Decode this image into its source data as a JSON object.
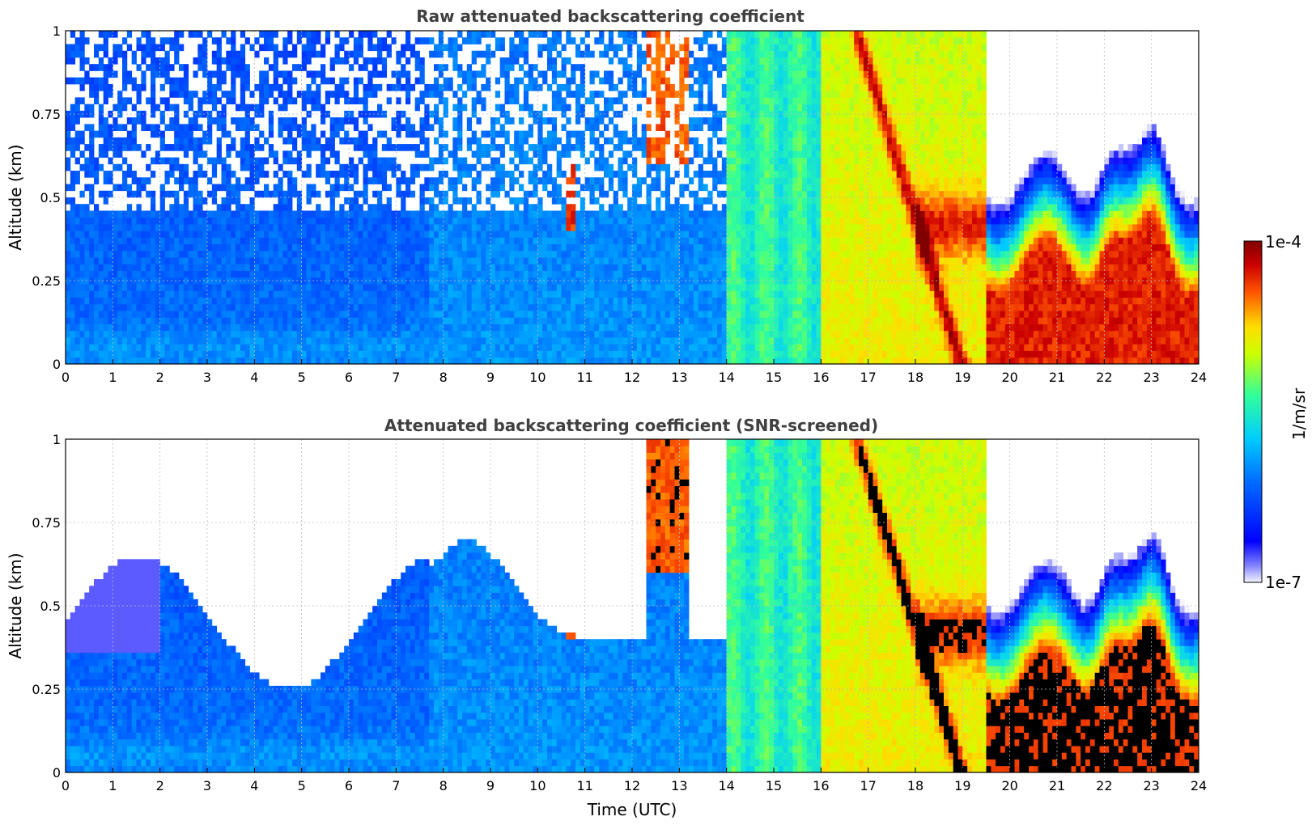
{
  "colors": {
    "title_text": "#404040",
    "grid": "#bbbbbb",
    "colormap": [
      "#ffffff",
      "#0000ff",
      "#0066ff",
      "#00ccff",
      "#33ffaa",
      "#ccff00",
      "#ffcc00",
      "#ff6600",
      "#cc0000",
      "#800000"
    ],
    "saturated": "#000000"
  },
  "chart_data": [
    {
      "type": "heatmap",
      "title": "Raw attenuated backscattering coefficient",
      "xlabel": "",
      "ylabel": "Altitude (km)",
      "xlim": [
        0,
        24
      ],
      "ylim": [
        0,
        1
      ],
      "xticks": [
        "0",
        "1",
        "2",
        "3",
        "4",
        "5",
        "6",
        "7",
        "8",
        "9",
        "10",
        "11",
        "12",
        "13",
        "14",
        "15",
        "16",
        "17",
        "18",
        "19",
        "20",
        "21",
        "22",
        "23",
        "24"
      ],
      "yticks": [
        "0",
        "0.25",
        "0.5",
        "0.75",
        "1"
      ],
      "grid": true,
      "color_scale": "log",
      "colorbar": {
        "min_label": "1e-7",
        "max_label": "1e-4",
        "label": "1/m/sr"
      },
      "time_segments": [
        {
          "x": [
            0,
            7.7
          ],
          "description_level": 0.3
        },
        {
          "x": [
            7.7,
            14
          ],
          "description_level": 0.35
        },
        {
          "x": [
            14,
            16
          ],
          "description_level": 0.55
        },
        {
          "x": [
            16,
            19.5
          ],
          "description_level": 0.75
        },
        {
          "x": [
            19.5,
            24
          ],
          "description_level": 0.9
        }
      ]
    },
    {
      "type": "heatmap",
      "title": "Attenuated backscattering coefficient (SNR-screened)",
      "xlabel": "Time (UTC)",
      "ylabel": "Altitude (km)",
      "xlim": [
        0,
        24
      ],
      "ylim": [
        0,
        1
      ],
      "xticks": [
        "0",
        "1",
        "2",
        "3",
        "4",
        "5",
        "6",
        "7",
        "8",
        "9",
        "10",
        "11",
        "12",
        "13",
        "14",
        "15",
        "16",
        "17",
        "18",
        "19",
        "20",
        "21",
        "22",
        "23",
        "24"
      ],
      "yticks": [
        "0",
        "0.25",
        "0.5",
        "0.75",
        "1"
      ],
      "grid": true,
      "color_scale": "log",
      "colorbar": {
        "min_label": "1e-7",
        "max_label": "1e-4",
        "label": "1/m/sr"
      }
    }
  ]
}
